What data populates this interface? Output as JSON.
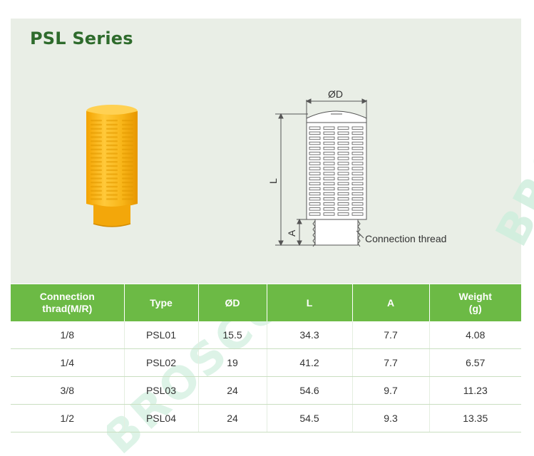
{
  "title": "PSL Series",
  "diagram": {
    "label_d": "ØD",
    "label_l": "L",
    "label_a": "A",
    "label_thread": "Connection thread"
  },
  "watermark": "BROSCOO",
  "table": {
    "headers": [
      "Connection\nthrad(M/R)",
      "Type",
      "ØD",
      "L",
      "A",
      "Weight\n(g)"
    ],
    "rows": [
      [
        "1/8",
        "PSL01",
        "15.5",
        "34.3",
        "7.7",
        "4.08"
      ],
      [
        "1/4",
        "PSL02",
        "19",
        "41.2",
        "7.7",
        "6.57"
      ],
      [
        "3/8",
        "PSL03",
        "24",
        "54.6",
        "9.7",
        "11.23"
      ],
      [
        "1/2",
        "PSL04",
        "24",
        "54.5",
        "9.3",
        "13.35"
      ]
    ]
  },
  "colors": {
    "header_bg": "#6cba45",
    "title": "#2e6b2c",
    "panel_bg": "#e9eee6",
    "product": "#f5b40f",
    "watermark": "#cfeedd"
  }
}
